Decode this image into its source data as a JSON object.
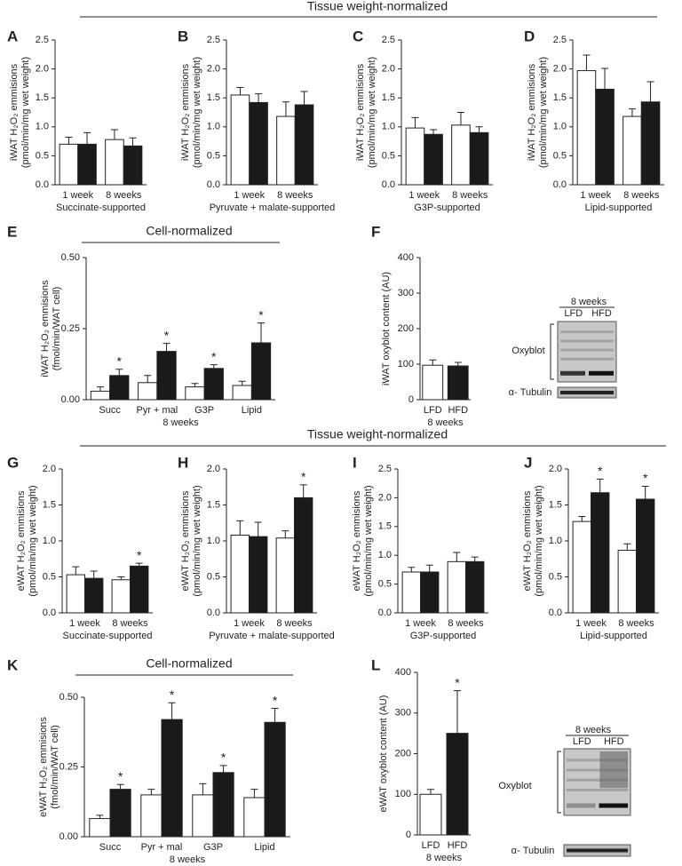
{
  "headers": [
    "Tissue weight-normalized",
    "Cell-normalized",
    "Tissue weight-normalized",
    "Cell-normalized"
  ],
  "blots": [
    {
      "title": "8 weeks",
      "lanes": [
        "LFD",
        "HFD"
      ],
      "labels": [
        "Oxyblot",
        "α- Tubulin"
      ]
    },
    {
      "title": "8 weeks",
      "lanes": [
        "LFD",
        "HFD"
      ],
      "labels": [
        "Oxyblot",
        "α- Tubulin"
      ]
    }
  ],
  "chart_data": [
    {
      "type": "bar",
      "panel": "A",
      "ylabel": [
        "iWAT H₂O₂ emmisions",
        "(pmol/min/mg wet weight)"
      ],
      "xlabel": "Succinate-supported",
      "categories": [
        "1 week",
        "8 weeks"
      ],
      "ylim": [
        0,
        2.5
      ],
      "yticks": [
        {
          "value": 0,
          "label": "0.0"
        },
        0.5,
        {
          "value": 1,
          "label": "1.0"
        },
        1.5,
        {
          "value": 2,
          "label": "2.0"
        },
        2.5
      ],
      "series": [
        {
          "color": "#ffffff",
          "values": [
            0.7,
            0.78
          ],
          "errors": [
            0.12,
            0.17
          ]
        },
        {
          "color": "#1a1a1a",
          "values": [
            0.7,
            0.67
          ],
          "errors": [
            0.2,
            0.14
          ]
        }
      ]
    },
    {
      "type": "bar",
      "panel": "B",
      "ylabel": [
        "iWAT H₂O₂ emmisions",
        "(pmol/min/mg wet weight)"
      ],
      "xlabel": "Pyruvate + malate-supported",
      "categories": [
        "1 week",
        "8 weeks"
      ],
      "ylim": [
        0,
        2.5
      ],
      "yticks": [
        {
          "value": 0,
          "label": "0.0"
        },
        0.5,
        {
          "value": 1,
          "label": "1.0"
        },
        1.5,
        {
          "value": 2,
          "label": "2.0"
        },
        2.5
      ],
      "series": [
        {
          "color": "#ffffff",
          "values": [
            1.55,
            1.18
          ],
          "errors": [
            0.13,
            0.25
          ]
        },
        {
          "color": "#1a1a1a",
          "values": [
            1.42,
            1.38
          ],
          "errors": [
            0.15,
            0.23
          ]
        }
      ]
    },
    {
      "type": "bar",
      "panel": "C",
      "ylabel": [
        "iWAT H₂O₂ emmisions",
        "(pmol/min/mg wet weight)"
      ],
      "xlabel": "G3P-supported",
      "categories": [
        "1 week",
        "8 weeks"
      ],
      "ylim": [
        0,
        2.5
      ],
      "yticks": [
        {
          "value": 0,
          "label": "0.0"
        },
        0.5,
        {
          "value": 1,
          "label": "1.0"
        },
        1.5,
        {
          "value": 2,
          "label": "2.0"
        },
        2.5
      ],
      "series": [
        {
          "color": "#ffffff",
          "values": [
            0.98,
            1.03
          ],
          "errors": [
            0.18,
            0.22
          ]
        },
        {
          "color": "#1a1a1a",
          "values": [
            0.87,
            0.9
          ],
          "errors": [
            0.08,
            0.1
          ]
        }
      ]
    },
    {
      "type": "bar",
      "panel": "D",
      "ylabel": [
        "iWAT H₂O₂ emmisions",
        "(pmol/min/mg wet weight)"
      ],
      "xlabel": "Lipid-supported",
      "categories": [
        "1 week",
        "8 weeks"
      ],
      "ylim": [
        0,
        2.5
      ],
      "yticks": [
        {
          "value": 0,
          "label": "0.0"
        },
        0.5,
        {
          "value": 1,
          "label": "1.0"
        },
        1.5,
        {
          "value": 2,
          "label": "2.0"
        },
        2.5
      ],
      "series": [
        {
          "color": "#ffffff",
          "values": [
            1.97,
            1.18
          ],
          "errors": [
            0.27,
            0.13
          ]
        },
        {
          "color": "#1a1a1a",
          "values": [
            1.65,
            1.43
          ],
          "errors": [
            0.36,
            0.35
          ]
        }
      ]
    },
    {
      "type": "bar",
      "panel": "E",
      "ylabel": [
        "iWAT H₂O₂ emmisions",
        "(fmol/min/WAT cell)"
      ],
      "xlabel": "8 weeks",
      "categories": [
        "Succ",
        "Pyr + mal",
        "G3P",
        "Lipid"
      ],
      "ylim": [
        0,
        0.5
      ],
      "yticks": [
        {
          "value": 0,
          "label": "0.00"
        },
        0.25,
        {
          "value": 0.5,
          "label": "0.50"
        }
      ],
      "series": [
        {
          "color": "#ffffff",
          "values": [
            0.03,
            0.06,
            0.045,
            0.05
          ],
          "errors": [
            0.015,
            0.025,
            0.012,
            0.015
          ]
        },
        {
          "color": "#1a1a1a",
          "values": [
            0.085,
            0.17,
            0.11,
            0.2
          ],
          "errors": [
            0.022,
            0.028,
            0.013,
            0.07
          ],
          "annotations": [
            "*",
            "*",
            "*",
            "*"
          ]
        }
      ]
    },
    {
      "type": "bar",
      "panel": "F",
      "ylabel": [
        "iWAT oxyblot content (AU)"
      ],
      "xlabel": "8 weeks",
      "categories": [
        "LFD",
        "HFD"
      ],
      "ylim": [
        0,
        400
      ],
      "yticks": [
        0,
        100,
        200,
        300,
        400
      ],
      "values": [
        97,
        95
      ],
      "errors": [
        15,
        10
      ],
      "colors": [
        "#ffffff",
        "#1a1a1a"
      ]
    },
    {
      "type": "bar",
      "panel": "G",
      "ylabel": [
        "eWAT H₂O₂ emmisions",
        "(pmol/min/mg wet weight)"
      ],
      "xlabel": "Succinate-supported",
      "categories": [
        "1 week",
        "8 weeks"
      ],
      "ylim": [
        0,
        2
      ],
      "yticks": [
        {
          "value": 0,
          "label": "0.0"
        },
        0.5,
        {
          "value": 1,
          "label": "1.0"
        },
        1.5,
        {
          "value": 2,
          "label": "2.0"
        }
      ],
      "series": [
        {
          "color": "#ffffff",
          "values": [
            0.53,
            0.46
          ],
          "errors": [
            0.11,
            0.04
          ]
        },
        {
          "color": "#1a1a1a",
          "values": [
            0.48,
            0.65
          ],
          "errors": [
            0.1,
            0.04
          ],
          "annotations": [
            null,
            "*"
          ]
        }
      ]
    },
    {
      "type": "bar",
      "panel": "H",
      "ylabel": [
        "eWAT H₂O₂ emmisions",
        "(pmol/min/mg wet weight)"
      ],
      "xlabel": "Pyruvate + malate-supported",
      "categories": [
        "1 week",
        "8 weeks"
      ],
      "ylim": [
        0,
        2
      ],
      "yticks": [
        {
          "value": 0,
          "label": "0.0"
        },
        0.5,
        {
          "value": 1,
          "label": "1.0"
        },
        1.5,
        {
          "value": 2,
          "label": "2.0"
        }
      ],
      "series": [
        {
          "color": "#ffffff",
          "values": [
            1.08,
            1.04
          ],
          "errors": [
            0.2,
            0.1
          ]
        },
        {
          "color": "#1a1a1a",
          "values": [
            1.06,
            1.6
          ],
          "errors": [
            0.2,
            0.18
          ],
          "annotations": [
            null,
            "*"
          ]
        }
      ]
    },
    {
      "type": "bar",
      "panel": "I",
      "ylabel": [
        "eWAT H₂O₂ emmisions",
        "(pmol/min/mg wet weight)"
      ],
      "xlabel": "G3P-supported",
      "categories": [
        "1 week",
        "8 weeks"
      ],
      "ylim": [
        0,
        2.5
      ],
      "yticks": [
        {
          "value": 0,
          "label": "0.0"
        },
        0.5,
        {
          "value": 1,
          "label": "1.0"
        },
        1.5,
        {
          "value": 2,
          "label": "2.0"
        },
        2.5
      ],
      "series": [
        {
          "color": "#ffffff",
          "values": [
            0.71,
            0.89
          ],
          "errors": [
            0.08,
            0.16
          ]
        },
        {
          "color": "#1a1a1a",
          "values": [
            0.71,
            0.89
          ],
          "errors": [
            0.12,
            0.08
          ]
        }
      ]
    },
    {
      "type": "bar",
      "panel": "J",
      "ylabel": [
        "eWAT H₂O₂ emmisions",
        "(pmol/min/mg wet weight)"
      ],
      "xlabel": "Lipid-supported",
      "categories": [
        "1 week",
        "8 weeks"
      ],
      "ylim": [
        0,
        2
      ],
      "yticks": [
        {
          "value": 0,
          "label": "0.0"
        },
        0.5,
        {
          "value": 1,
          "label": "1.0"
        },
        1.5,
        {
          "value": 2,
          "label": "2.0"
        }
      ],
      "series": [
        {
          "color": "#ffffff",
          "values": [
            1.27,
            0.87
          ],
          "errors": [
            0.07,
            0.09
          ]
        },
        {
          "color": "#1a1a1a",
          "values": [
            1.67,
            1.58
          ],
          "errors": [
            0.19,
            0.18
          ],
          "annotations": [
            "*",
            "*"
          ]
        }
      ]
    },
    {
      "type": "bar",
      "panel": "K",
      "ylabel": [
        "eWAT H₂O₂ emmisions",
        "(fmol/min/WAT cell)"
      ],
      "xlabel": "8 weeks",
      "categories": [
        "Succ",
        "Pyr + mal",
        "G3P",
        "Lipid"
      ],
      "ylim": [
        0,
        0.5
      ],
      "yticks": [
        {
          "value": 0,
          "label": "0.00"
        },
        0.25,
        {
          "value": 0.5,
          "label": "0.50"
        }
      ],
      "series": [
        {
          "color": "#ffffff",
          "values": [
            0.065,
            0.15,
            0.15,
            0.14
          ],
          "errors": [
            0.012,
            0.02,
            0.04,
            0.03
          ]
        },
        {
          "color": "#1a1a1a",
          "values": [
            0.17,
            0.42,
            0.23,
            0.41
          ],
          "errors": [
            0.017,
            0.06,
            0.025,
            0.05
          ],
          "annotations": [
            "*",
            "*",
            "*",
            "*"
          ]
        }
      ]
    },
    {
      "type": "bar",
      "panel": "L",
      "ylabel": [
        "eWAT oxyblot content (AU)"
      ],
      "xlabel": "8 weeks",
      "categories": [
        "LFD",
        "HFD"
      ],
      "ylim": [
        0,
        400
      ],
      "yticks": [
        0,
        100,
        200,
        300,
        400
      ],
      "values": [
        100,
        250
      ],
      "errors": [
        12,
        105
      ],
      "colors": [
        "#ffffff",
        "#1a1a1a"
      ],
      "annotations": [
        null,
        "*"
      ]
    }
  ]
}
